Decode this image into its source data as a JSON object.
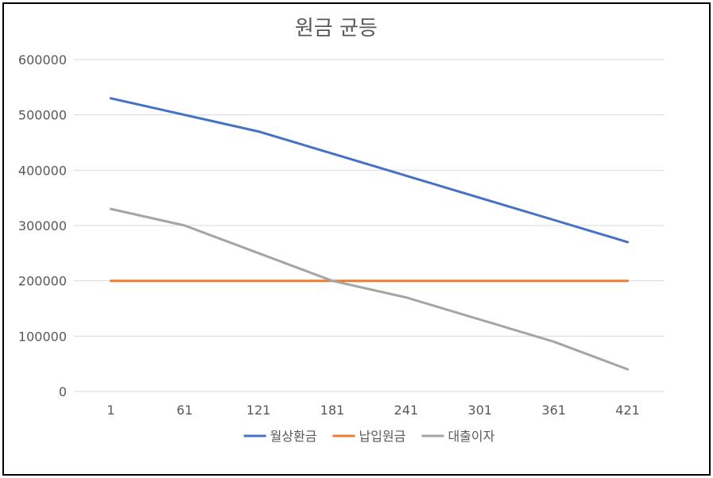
{
  "chart_data": {
    "type": "line",
    "title": "원금 균등",
    "xlabel": "",
    "ylabel": "",
    "categories": [
      "1",
      "61",
      "121",
      "181",
      "241",
      "301",
      "361",
      "421"
    ],
    "ylim": [
      0,
      600000
    ],
    "yticks": [
      0,
      100000,
      200000,
      300000,
      400000,
      500000,
      600000
    ],
    "grid": true,
    "legend_position": "bottom",
    "series": [
      {
        "name": "월상환금",
        "color": "#4472c4",
        "values": [
          530000,
          500000,
          470000,
          430000,
          390000,
          350000,
          310000,
          270000
        ]
      },
      {
        "name": "납입원금",
        "color": "#ed7d31",
        "values": [
          200000,
          200000,
          200000,
          200000,
          200000,
          200000,
          200000,
          200000
        ]
      },
      {
        "name": "대출이자",
        "color": "#a5a5a5",
        "values": [
          330000,
          300000,
          250000,
          200000,
          170000,
          130000,
          90000,
          40000
        ]
      }
    ]
  }
}
